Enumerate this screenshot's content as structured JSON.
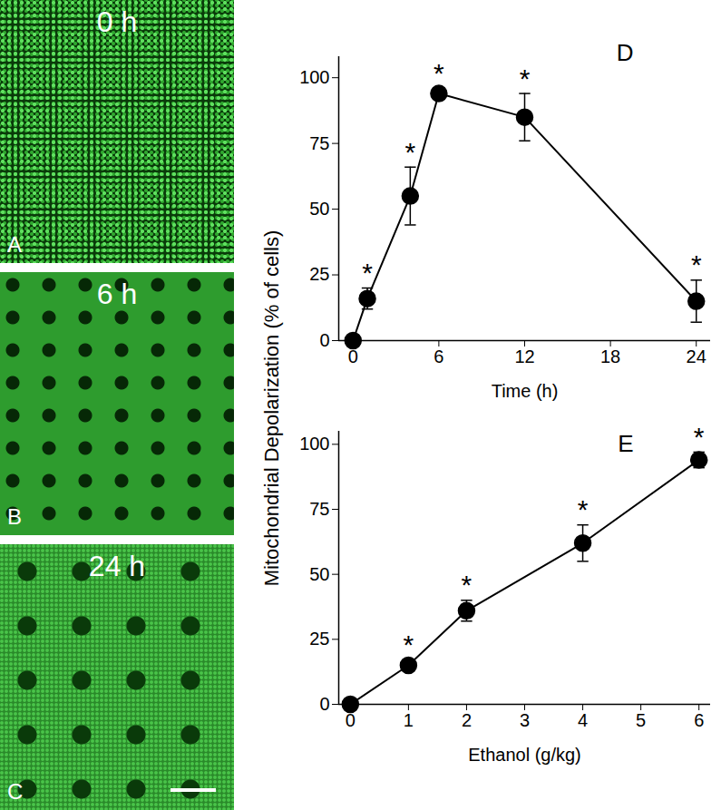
{
  "images": [
    {
      "letter": "A",
      "label": "0 h"
    },
    {
      "letter": "B",
      "label": "6 h"
    },
    {
      "letter": "C",
      "label": "24 h"
    }
  ],
  "shared_ylabel": "Mitochondrial Depolarization (% of cells)",
  "chart_data": [
    {
      "type": "line",
      "panel": "D",
      "xlabel": "Time (h)",
      "x": [
        0,
        1,
        4,
        6,
        12,
        24
      ],
      "values": [
        0,
        16,
        55,
        94,
        85,
        15
      ],
      "errors": [
        0,
        4,
        11,
        2,
        9,
        8
      ],
      "significance": [
        null,
        "*",
        "*",
        "*",
        "*",
        "*"
      ],
      "xlim": [
        -1,
        25
      ],
      "xticks": [
        0,
        6,
        12,
        18,
        24
      ],
      "ylim": [
        0,
        108
      ],
      "yticks": [
        0,
        25,
        50,
        75,
        100
      ],
      "color": "#000000",
      "marker": "circle"
    },
    {
      "type": "line",
      "panel": "E",
      "xlabel": "Ethanol (g/kg)",
      "x": [
        0,
        1,
        2,
        4,
        6
      ],
      "values": [
        0,
        15,
        36,
        62,
        94
      ],
      "errors": [
        0,
        2,
        4,
        7,
        3
      ],
      "significance": [
        null,
        "*",
        "*",
        "*",
        "*"
      ],
      "xlim": [
        -0.2,
        6.2
      ],
      "xticks": [
        0,
        1,
        2,
        3,
        4,
        5,
        6
      ],
      "ylim": [
        0,
        105
      ],
      "yticks": [
        0,
        25,
        50,
        75,
        100
      ],
      "color": "#000000",
      "marker": "circle"
    }
  ]
}
